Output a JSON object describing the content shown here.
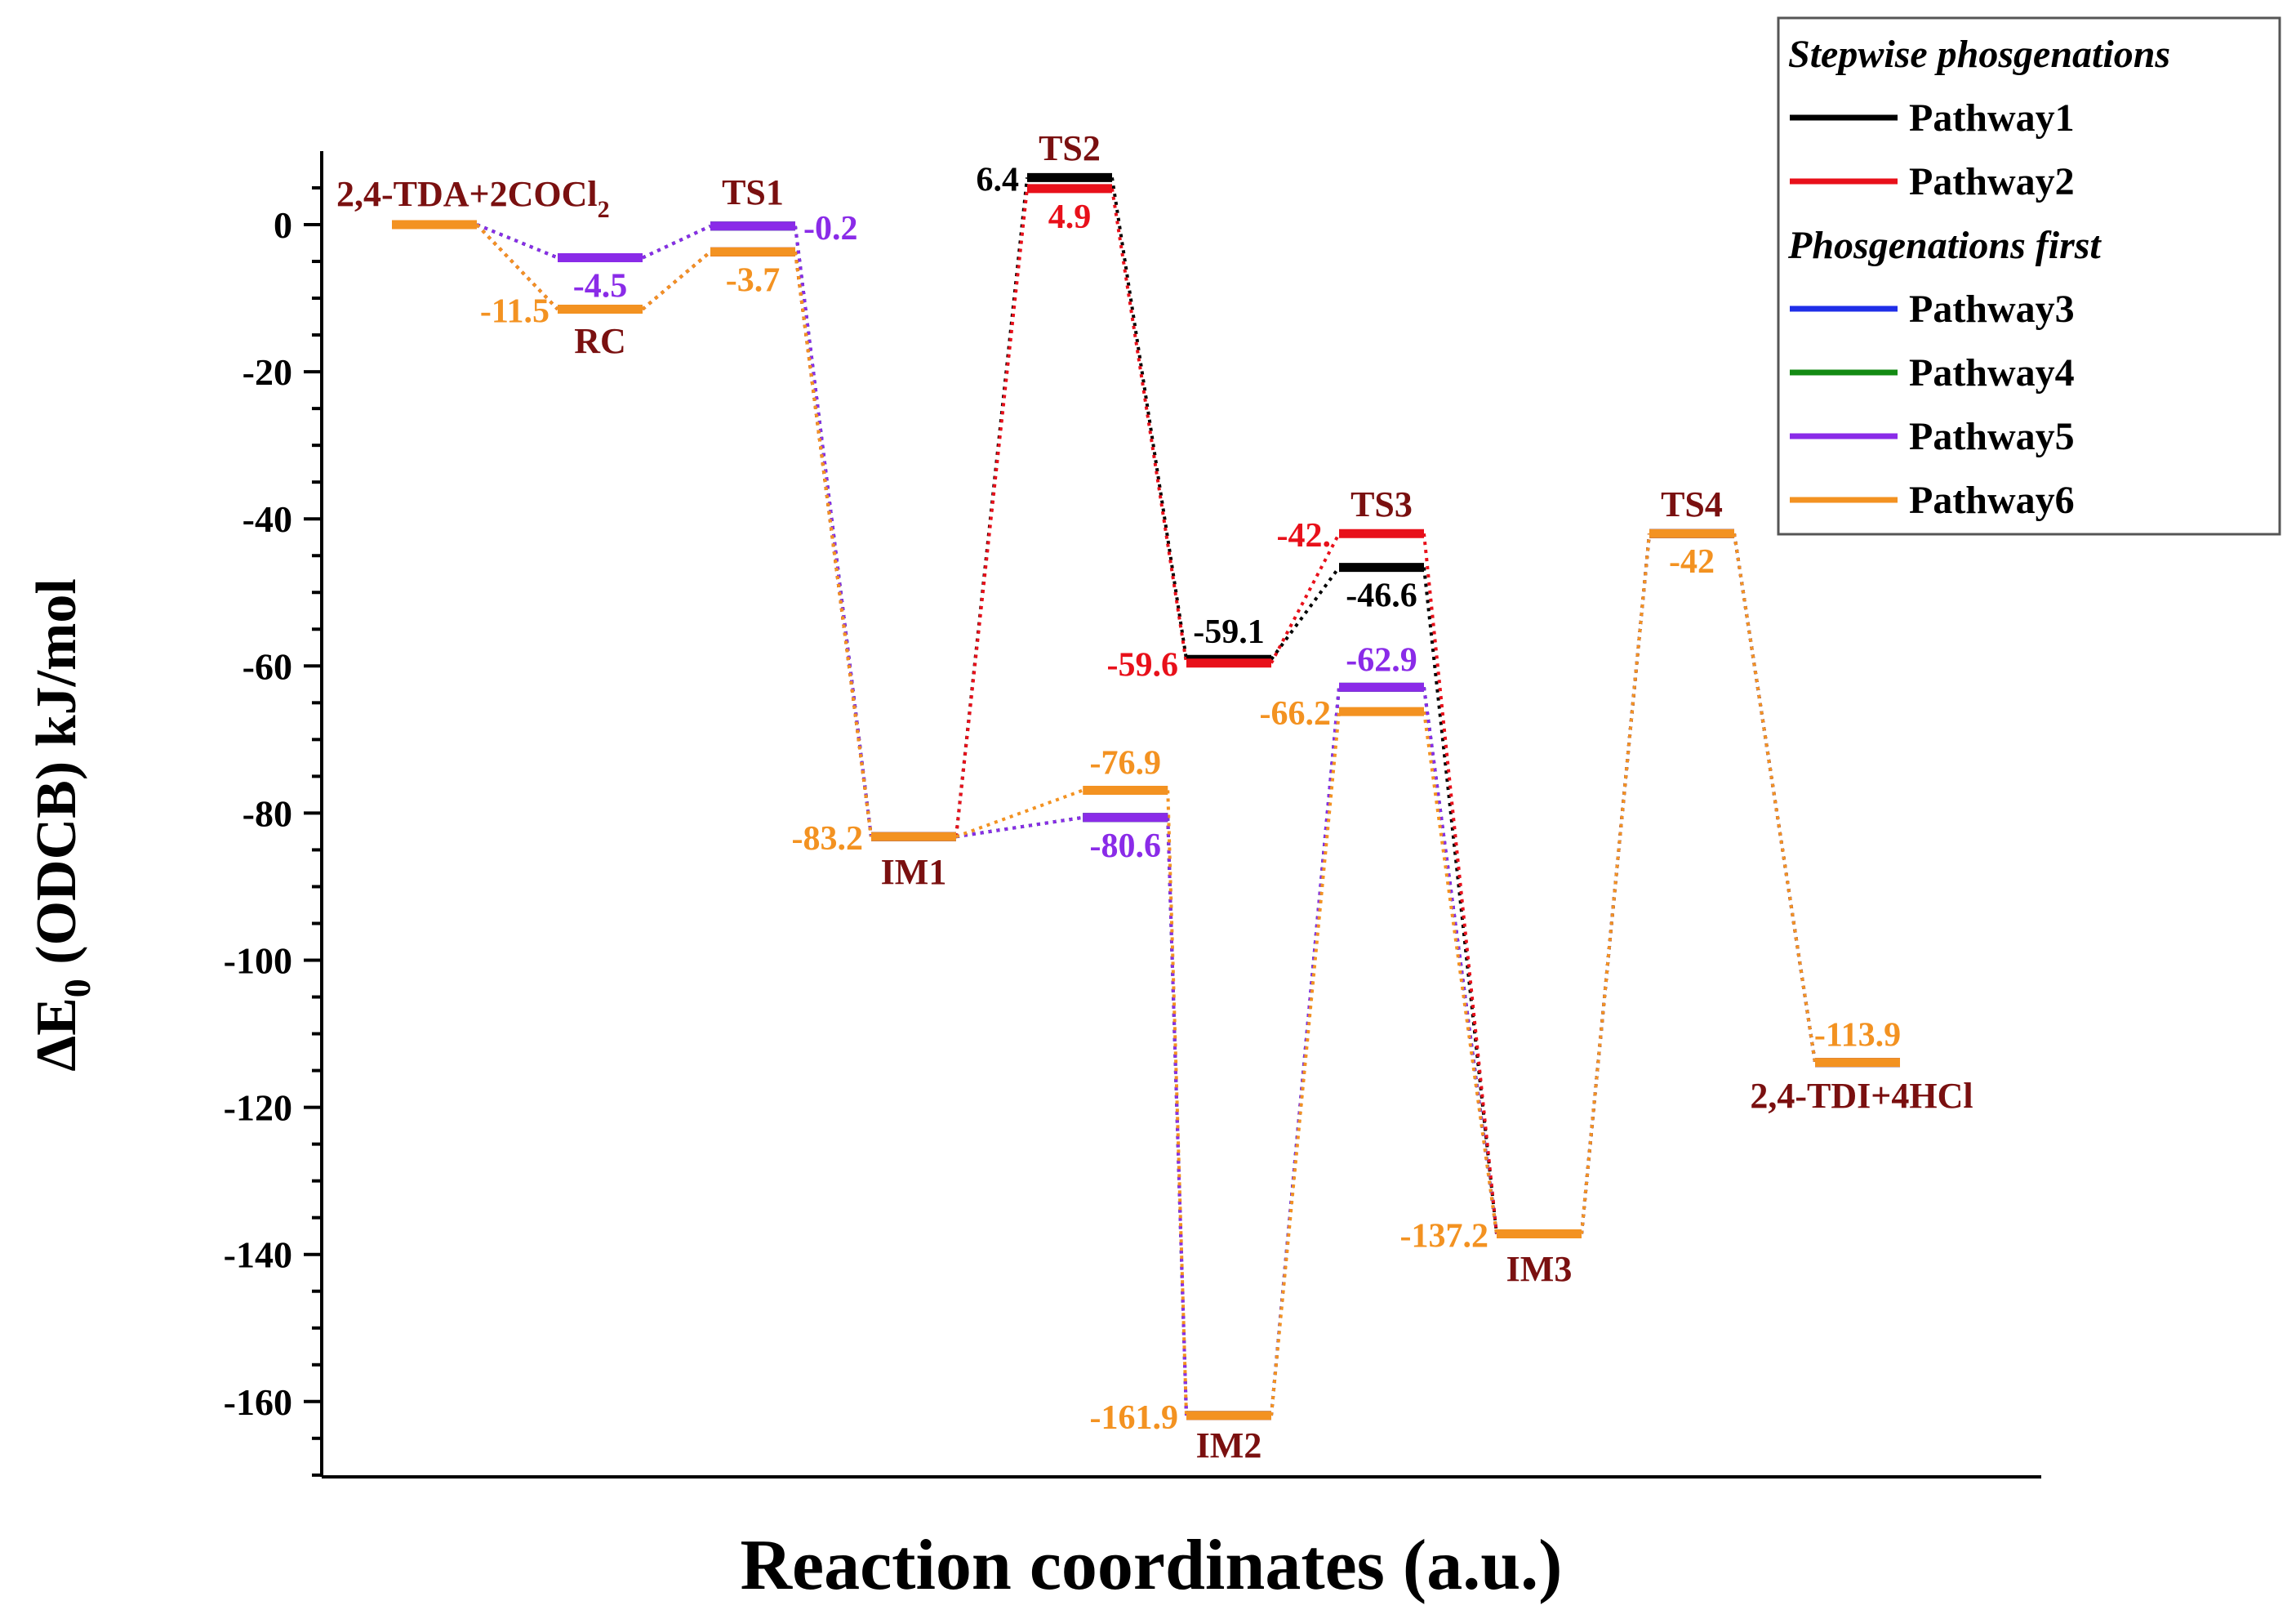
{
  "chart_data": {
    "type": "energy-profile",
    "ylabel": "ΔE0 (ODCB) kJ/mol",
    "ylabel_parts": {
      "main": "ΔE",
      "sub": "0",
      "rest": " (ODCB) kJ/mol"
    },
    "xlabel": "Reaction coordinates (a.u.)",
    "ylim": [
      -170,
      10
    ],
    "yticks": [
      0,
      -20,
      -40,
      -60,
      -80,
      -100,
      -120,
      -140,
      -160
    ],
    "ytick_labels": [
      "0",
      "-20",
      "-40",
      "-60",
      "-80",
      "-100",
      "-120",
      "-140",
      "-160"
    ],
    "x_positions": 10,
    "state_labels": [
      {
        "id": "start",
        "text": "2,4-TDA+2COCl",
        "sub": "2"
      },
      {
        "id": "rc",
        "text": "RC"
      },
      {
        "id": "ts1",
        "text": "TS1"
      },
      {
        "id": "im1",
        "text": "IM1"
      },
      {
        "id": "ts2",
        "text": "TS2"
      },
      {
        "id": "im2",
        "text": "IM2"
      },
      {
        "id": "ts3",
        "text": "TS3"
      },
      {
        "id": "im3",
        "text": "IM3"
      },
      {
        "id": "ts4",
        "text": "TS4"
      },
      {
        "id": "end",
        "text": "2,4-TDI+4HCl"
      }
    ],
    "series": [
      {
        "name": "Pathway1",
        "color": "#000000",
        "points": [
          [
            0,
            0
          ],
          [
            1,
            -11.5
          ],
          [
            2,
            -3.7
          ],
          [
            3,
            -83.2
          ],
          [
            4,
            6.4
          ],
          [
            5,
            -59.1
          ],
          [
            6,
            -46.6
          ],
          [
            7,
            -137.2
          ],
          [
            8,
            -42
          ],
          [
            9,
            -113.9
          ]
        ]
      },
      {
        "name": "Pathway2",
        "color": "#e8101a",
        "points": [
          [
            0,
            0
          ],
          [
            1,
            -11.5
          ],
          [
            2,
            -3.7
          ],
          [
            3,
            -83.2
          ],
          [
            4,
            4.9
          ],
          [
            5,
            -59.6
          ],
          [
            6,
            -42
          ],
          [
            7,
            -137.2
          ],
          [
            8,
            -42
          ],
          [
            9,
            -113.9
          ]
        ]
      },
      {
        "name": "Pathway3",
        "color": "#1f2ee8",
        "points": [
          [
            0,
            0
          ],
          [
            1,
            -4.5
          ],
          [
            2,
            -0.2
          ],
          [
            3,
            -83.2
          ],
          [
            4,
            -80.6
          ],
          [
            5,
            -161.9
          ],
          [
            6,
            -62.9
          ],
          [
            7,
            -137.2
          ],
          [
            8,
            -42
          ],
          [
            9,
            -113.9
          ]
        ]
      },
      {
        "name": "Pathway4",
        "color": "#138a13",
        "points": [
          [
            0,
            0
          ],
          [
            1,
            -4.5
          ],
          [
            2,
            -0.2
          ],
          [
            3,
            -83.2
          ],
          [
            4,
            -80.6
          ],
          [
            5,
            -161.9
          ],
          [
            6,
            -62.9
          ],
          [
            7,
            -137.2
          ],
          [
            8,
            -42
          ],
          [
            9,
            -113.9
          ]
        ]
      },
      {
        "name": "Pathway5",
        "color": "#8a2be8",
        "points": [
          [
            0,
            0
          ],
          [
            1,
            -4.5
          ],
          [
            2,
            -0.2
          ],
          [
            3,
            -83.2
          ],
          [
            4,
            -80.6
          ],
          [
            5,
            -161.9
          ],
          [
            6,
            -62.9
          ],
          [
            7,
            -137.2
          ],
          [
            8,
            -42
          ],
          [
            9,
            -113.9
          ]
        ]
      },
      {
        "name": "Pathway6",
        "color": "#f39221",
        "points": [
          [
            0,
            0
          ],
          [
            1,
            -11.5
          ],
          [
            2,
            -3.7
          ],
          [
            3,
            -83.2
          ],
          [
            4,
            -76.9
          ],
          [
            5,
            -161.9
          ],
          [
            6,
            -66.2
          ],
          [
            7,
            -137.2
          ],
          [
            8,
            -42
          ],
          [
            9,
            -113.9
          ]
        ]
      }
    ],
    "value_labels": [
      {
        "text": "-4.5",
        "color": "#8a2be8",
        "x": 1,
        "y": -4.5,
        "pos": "below"
      },
      {
        "text": "-11.5",
        "color": "#f39221",
        "x": 1,
        "y": -11.5,
        "pos": "left"
      },
      {
        "text": "-0.2",
        "color": "#8a2be8",
        "x": 2,
        "y": -0.2,
        "pos": "right"
      },
      {
        "text": "-3.7",
        "color": "#f39221",
        "x": 2,
        "y": -3.7,
        "pos": "below"
      },
      {
        "text": "-83.2",
        "color": "#f39221",
        "x": 3,
        "y": -83.2,
        "pos": "left"
      },
      {
        "text": "6.4",
        "color": "#000000",
        "x": 4,
        "y": 6.4,
        "pos": "left"
      },
      {
        "text": "4.9",
        "color": "#e8101a",
        "x": 4,
        "y": 4.9,
        "pos": "below"
      },
      {
        "text": "-76.9",
        "color": "#f39221",
        "x": 4.35,
        "y": -76.9,
        "pos": "above"
      },
      {
        "text": "-80.6",
        "color": "#8a2be8",
        "x": 4.35,
        "y": -80.6,
        "pos": "below"
      },
      {
        "text": "-59.1",
        "color": "#000000",
        "x": 5,
        "y": -59.1,
        "pos": "above"
      },
      {
        "text": "-59.6",
        "color": "#e8101a",
        "x": 5,
        "y": -59.6,
        "pos": "left"
      },
      {
        "text": "-161.9",
        "color": "#f39221",
        "x": 5,
        "y": -161.9,
        "pos": "left"
      },
      {
        "text": "-42.",
        "color": "#e8101a",
        "x": 6,
        "y": -42,
        "pos": "left"
      },
      {
        "text": "-46.6",
        "color": "#000000",
        "x": 6,
        "y": -46.6,
        "pos": "below"
      },
      {
        "text": "-62.9",
        "color": "#8a2be8",
        "x": 6,
        "y": -62.9,
        "pos": "above"
      },
      {
        "text": "-66.2",
        "color": "#f39221",
        "x": 6,
        "y": -66.2,
        "pos": "left"
      },
      {
        "text": "-137.2",
        "color": "#f39221",
        "x": 7,
        "y": -137.2,
        "pos": "left"
      },
      {
        "text": "-42",
        "color": "#f39221",
        "x": 8,
        "y": -42,
        "pos": "below"
      },
      {
        "text": "-113.9",
        "color": "#f39221",
        "x": 9,
        "y": -113.9,
        "pos": "above"
      }
    ],
    "legend": {
      "position": "top-right",
      "groups": [
        {
          "heading": "Stepwise phosgenations",
          "items": [
            "Pathway1",
            "Pathway2"
          ]
        },
        {
          "heading": "Phosgenations first",
          "items": [
            "Pathway3",
            "Pathway4",
            "Pathway5",
            "Pathway6"
          ]
        }
      ]
    }
  }
}
